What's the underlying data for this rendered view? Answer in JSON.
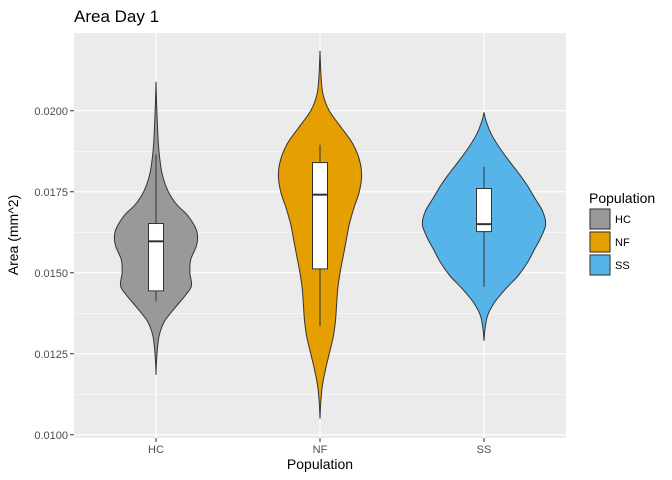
{
  "chart_data": {
    "type": "violin",
    "title": "Area Day 1",
    "xlabel": "Population",
    "ylabel": "Area (mm^2)",
    "ylim": [
      0.0099,
      0.0224
    ],
    "yticks": [
      {
        "value": 0.01,
        "label": "0.0100"
      },
      {
        "value": 0.0125,
        "label": "0.0125"
      },
      {
        "value": 0.015,
        "label": "0.0150"
      },
      {
        "value": 0.0175,
        "label": "0.0175"
      },
      {
        "value": 0.02,
        "label": "0.0200"
      }
    ],
    "categories": [
      "HC",
      "NF",
      "SS"
    ],
    "grid": true,
    "legend": {
      "title": "Population",
      "position": "right"
    },
    "series": [
      {
        "name": "HC",
        "color": "#999999",
        "box": {
          "whisker_low": 0.01412,
          "q1": 0.01444,
          "median": 0.01597,
          "q3": 0.01652,
          "whisker_high": 0.01865
        },
        "density": [
          [
            0.01185,
            0.0
          ],
          [
            0.0122,
            0.005
          ],
          [
            0.0127,
            0.02
          ],
          [
            0.0131,
            0.045
          ],
          [
            0.0135,
            0.11
          ],
          [
            0.0139,
            0.24
          ],
          [
            0.0143,
            0.38
          ],
          [
            0.0146,
            0.46
          ],
          [
            0.015,
            0.44
          ],
          [
            0.0154,
            0.45
          ],
          [
            0.0158,
            0.52
          ],
          [
            0.0161,
            0.54
          ],
          [
            0.0164,
            0.51
          ],
          [
            0.0168,
            0.4
          ],
          [
            0.0171,
            0.27
          ],
          [
            0.0175,
            0.16
          ],
          [
            0.018,
            0.085
          ],
          [
            0.0185,
            0.05
          ],
          [
            0.019,
            0.03
          ],
          [
            0.0196,
            0.018
          ],
          [
            0.0202,
            0.008
          ],
          [
            0.0209,
            0.0
          ]
        ]
      },
      {
        "name": "NF",
        "color": "#E69F00",
        "box": {
          "whisker_low": 0.01335,
          "q1": 0.01512,
          "median": 0.01741,
          "q3": 0.0184,
          "whisker_high": 0.01895
        },
        "density": [
          [
            0.0105,
            0.0
          ],
          [
            0.011,
            0.01
          ],
          [
            0.0115,
            0.03
          ],
          [
            0.012,
            0.07
          ],
          [
            0.0125,
            0.12
          ],
          [
            0.013,
            0.17
          ],
          [
            0.0135,
            0.2
          ],
          [
            0.014,
            0.215
          ],
          [
            0.0145,
            0.23
          ],
          [
            0.015,
            0.26
          ],
          [
            0.0155,
            0.3
          ],
          [
            0.016,
            0.34
          ],
          [
            0.0165,
            0.38
          ],
          [
            0.017,
            0.44
          ],
          [
            0.0175,
            0.51
          ],
          [
            0.018,
            0.54
          ],
          [
            0.0185,
            0.51
          ],
          [
            0.019,
            0.42
          ],
          [
            0.0195,
            0.27
          ],
          [
            0.02,
            0.12
          ],
          [
            0.0205,
            0.04
          ],
          [
            0.021,
            0.015
          ],
          [
            0.0215,
            0.005
          ],
          [
            0.02185,
            0.0
          ]
        ]
      },
      {
        "name": "SS",
        "color": "#56B4E9",
        "box": {
          "whisker_low": 0.01457,
          "q1": 0.01627,
          "median": 0.0165,
          "q3": 0.0176,
          "whisker_high": 0.01827
        },
        "density": [
          [
            0.0129,
            0.0
          ],
          [
            0.0133,
            0.015
          ],
          [
            0.0137,
            0.05
          ],
          [
            0.0141,
            0.14
          ],
          [
            0.0145,
            0.28
          ],
          [
            0.0149,
            0.44
          ],
          [
            0.0153,
            0.56
          ],
          [
            0.0157,
            0.65
          ],
          [
            0.0161,
            0.74
          ],
          [
            0.0165,
            0.8
          ],
          [
            0.0169,
            0.76
          ],
          [
            0.0173,
            0.66
          ],
          [
            0.0177,
            0.56
          ],
          [
            0.0181,
            0.44
          ],
          [
            0.0185,
            0.31
          ],
          [
            0.0189,
            0.19
          ],
          [
            0.0193,
            0.09
          ],
          [
            0.0197,
            0.025
          ],
          [
            0.01995,
            0.0
          ]
        ]
      }
    ]
  }
}
